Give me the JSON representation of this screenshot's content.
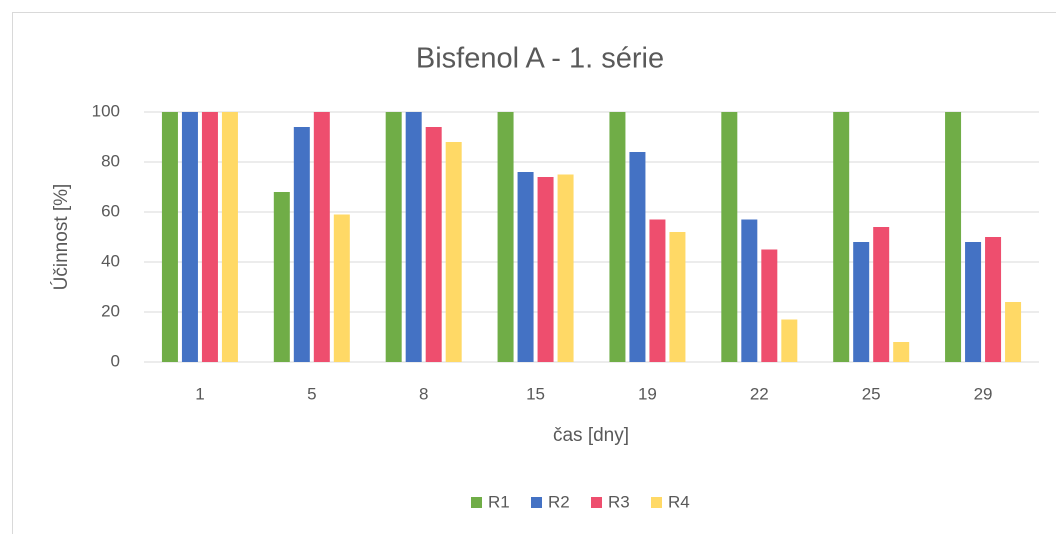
{
  "chart_data": {
    "type": "bar",
    "title": "Bisfenol A - 1. série",
    "xlabel": "čas [dny]",
    "ylabel": "Účinnost [%]",
    "categories": [
      "1",
      "5",
      "8",
      "15",
      "19",
      "22",
      "25",
      "29"
    ],
    "series": [
      {
        "name": "R1",
        "color": "#70ad47",
        "values": [
          100,
          68,
          100,
          100,
          100,
          100,
          100,
          100
        ]
      },
      {
        "name": "R2",
        "color": "#4472c4",
        "values": [
          100,
          94,
          100,
          76,
          84,
          57,
          48,
          48
        ]
      },
      {
        "name": "R3",
        "color": "#ee4e6e",
        "values": [
          100,
          100,
          94,
          74,
          57,
          45,
          54,
          50
        ]
      },
      {
        "name": "R4",
        "color": "#ffd966",
        "values": [
          100,
          59,
          88,
          75,
          52,
          17,
          8,
          24
        ]
      }
    ],
    "ylim": [
      0,
      100
    ],
    "yticks": [
      0,
      20,
      40,
      60,
      80,
      100
    ],
    "grid": true,
    "legend": "bottom"
  }
}
